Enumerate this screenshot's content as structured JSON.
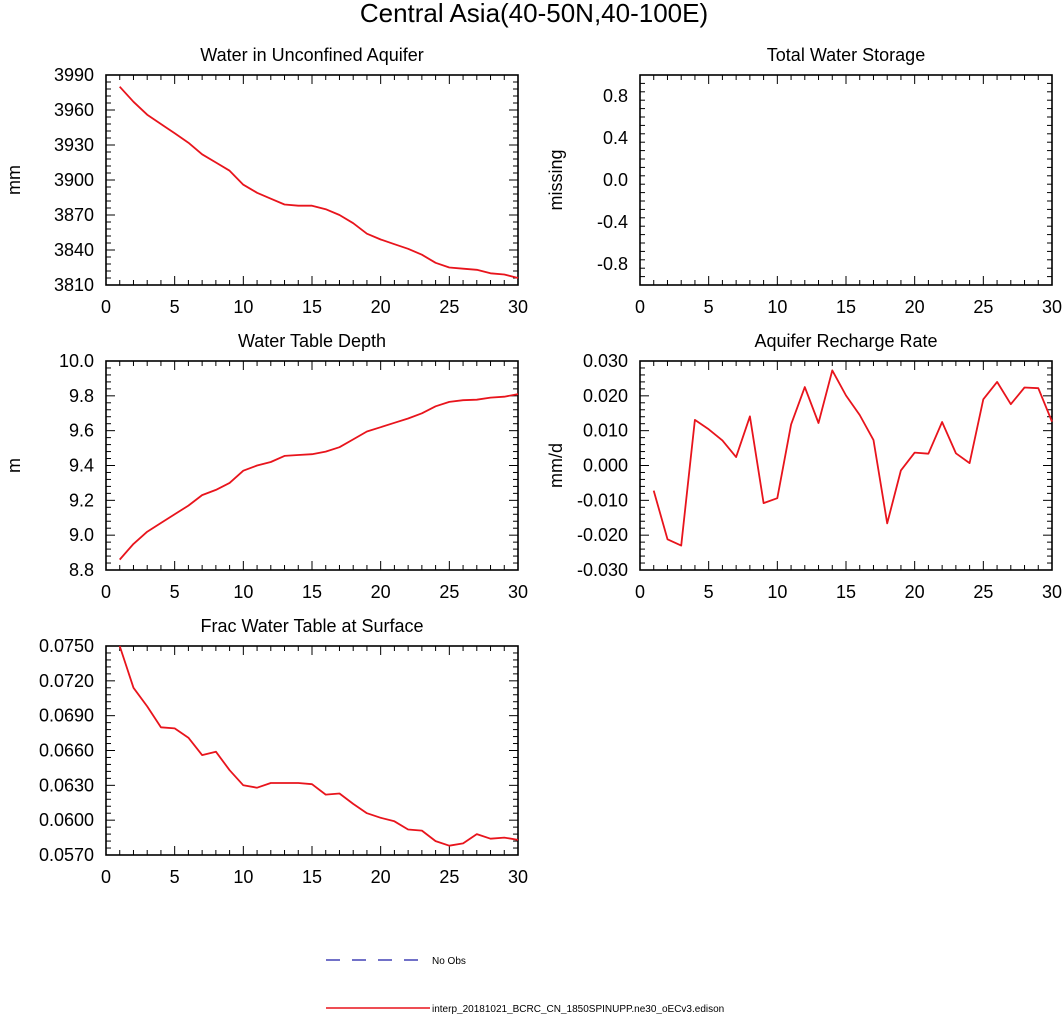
{
  "figure_title": "Central Asia(40-50N,40-100E)",
  "legend": {
    "obs_label": "No Obs",
    "model_label": "interp_20181021_BCRC_CN_1850SPINUPP.ne30_oECv3.edison"
  },
  "colors": {
    "model": "#e8141c",
    "obs": "#1c1ca8",
    "axis": "#000000"
  },
  "chart_data": [
    {
      "type": "line",
      "title": "Water in Unconfined Aquifer",
      "xlabel": "",
      "ylabel": "mm",
      "xlim": [
        0,
        30
      ],
      "ylim": [
        3810,
        3990
      ],
      "xticks": [
        0,
        5,
        10,
        15,
        20,
        25,
        30
      ],
      "xtick_labels": [
        "0",
        "5",
        "10",
        "15",
        "20",
        "25",
        "30"
      ],
      "yticks": [
        3810,
        3840,
        3870,
        3900,
        3930,
        3960,
        3990
      ],
      "ytick_labels": [
        "3810",
        "3840",
        "3870",
        "3900",
        "3930",
        "3960",
        "3990"
      ],
      "x": [
        1,
        2,
        3,
        4,
        5,
        6,
        7,
        8,
        9,
        10,
        11,
        12,
        13,
        14,
        15,
        16,
        17,
        18,
        19,
        20,
        21,
        22,
        23,
        24,
        25,
        26,
        27,
        28,
        29,
        30
      ],
      "series": [
        {
          "name": "interp_20181021_BCRC_CN_1850SPINUPP.ne30_oECv3.edison",
          "values": [
            3980,
            3967,
            3956,
            3948,
            3940,
            3932,
            3922,
            3915,
            3908,
            3896,
            3889,
            3884,
            3879,
            3878,
            3878,
            3875,
            3870,
            3863,
            3854,
            3849,
            3845,
            3841,
            3836,
            3829,
            3825,
            3824,
            3823,
            3820,
            3819,
            3816
          ]
        }
      ]
    },
    {
      "type": "line",
      "title": "Total Water Storage",
      "xlabel": "",
      "ylabel": "missing",
      "xlim": [
        0,
        30
      ],
      "ylim": [
        -1,
        1
      ],
      "xticks": [
        0,
        5,
        10,
        15,
        20,
        25,
        30
      ],
      "xtick_labels": [
        "0",
        "5",
        "10",
        "15",
        "20",
        "25",
        "30"
      ],
      "yticks": [
        -0.8,
        -0.4,
        0,
        0.4,
        0.8
      ],
      "ytick_labels": [
        "-0.8",
        "-0.4",
        "0.0",
        "0.4",
        "0.8"
      ],
      "x": [],
      "series": []
    },
    {
      "type": "line",
      "title": "Water Table Depth",
      "xlabel": "",
      "ylabel": "m",
      "xlim": [
        0,
        30
      ],
      "ylim": [
        8.8,
        10.0
      ],
      "xticks": [
        0,
        5,
        10,
        15,
        20,
        25,
        30
      ],
      "xtick_labels": [
        "0",
        "5",
        "10",
        "15",
        "20",
        "25",
        "30"
      ],
      "yticks": [
        8.8,
        9.0,
        9.2,
        9.4,
        9.6,
        9.8,
        10.0
      ],
      "ytick_labels": [
        "8.8",
        "9.0",
        "9.2",
        "9.4",
        "9.6",
        "9.8",
        "10.0"
      ],
      "x": [
        1,
        2,
        3,
        4,
        5,
        6,
        7,
        8,
        9,
        10,
        11,
        12,
        13,
        14,
        15,
        16,
        17,
        18,
        19,
        20,
        21,
        22,
        23,
        24,
        25,
        26,
        27,
        28,
        29,
        30
      ],
      "series": [
        {
          "name": "interp_20181021_BCRC_CN_1850SPINUPP.ne30_oECv3.edison",
          "values": [
            8.86,
            8.95,
            9.02,
            9.07,
            9.12,
            9.17,
            9.23,
            9.26,
            9.3,
            9.37,
            9.4,
            9.42,
            9.455,
            9.46,
            9.465,
            9.48,
            9.505,
            9.55,
            9.595,
            9.62,
            9.645,
            9.67,
            9.7,
            9.74,
            9.765,
            9.775,
            9.778,
            9.79,
            9.795,
            9.81
          ]
        }
      ]
    },
    {
      "type": "line",
      "title": "Aquifer Recharge Rate",
      "xlabel": "",
      "ylabel": "mm/d",
      "xlim": [
        0,
        30
      ],
      "ylim": [
        -0.03,
        0.03
      ],
      "xticks": [
        0,
        5,
        10,
        15,
        20,
        25,
        30
      ],
      "xtick_labels": [
        "0",
        "5",
        "10",
        "15",
        "20",
        "25",
        "30"
      ],
      "yticks": [
        -0.03,
        -0.02,
        -0.01,
        0,
        0.01,
        0.02,
        0.03
      ],
      "ytick_labels": [
        "-0.030",
        "-0.020",
        "-0.010",
        "0.000",
        "0.010",
        "0.020",
        "0.030"
      ],
      "x": [
        1,
        2,
        3,
        4,
        5,
        6,
        7,
        8,
        9,
        10,
        11,
        12,
        13,
        14,
        15,
        16,
        17,
        18,
        19,
        20,
        21,
        22,
        23,
        24,
        25,
        26,
        27,
        28,
        29,
        30
      ],
      "series": [
        {
          "name": "interp_20181021_BCRC_CN_1850SPINUPP.ne30_oECv3.edison",
          "values": [
            -0.0072,
            -0.0212,
            -0.023,
            0.0131,
            0.0104,
            0.0072,
            0.0024,
            0.0141,
            -0.0108,
            -0.0094,
            0.0118,
            0.0225,
            0.0122,
            0.0273,
            0.0201,
            0.0145,
            0.0073,
            -0.0166,
            -0.0014,
            0.0037,
            0.0034,
            0.0125,
            0.0035,
            0.0007,
            0.019,
            0.024,
            0.0176,
            0.0224,
            0.0222,
            0.0126
          ]
        }
      ]
    },
    {
      "type": "line",
      "title": "Frac Water Table at Surface",
      "xlabel": "",
      "ylabel": "",
      "xlim": [
        0,
        30
      ],
      "ylim": [
        0.057,
        0.075
      ],
      "xticks": [
        0,
        5,
        10,
        15,
        20,
        25,
        30
      ],
      "xtick_labels": [
        "0",
        "5",
        "10",
        "15",
        "20",
        "25",
        "30"
      ],
      "yticks": [
        0.057,
        0.06,
        0.063,
        0.066,
        0.069,
        0.072,
        0.075
      ],
      "ytick_labels": [
        "0.0570",
        "0.0600",
        "0.0630",
        "0.0660",
        "0.0690",
        "0.0720",
        "0.0750"
      ],
      "x": [
        1,
        2,
        3,
        4,
        5,
        6,
        7,
        8,
        9,
        10,
        11,
        12,
        13,
        14,
        15,
        16,
        17,
        18,
        19,
        20,
        21,
        22,
        23,
        24,
        25,
        26,
        27,
        28,
        29,
        30
      ],
      "series": [
        {
          "name": "interp_20181021_BCRC_CN_1850SPINUPP.ne30_oECv3.edison",
          "values": [
            0.075,
            0.0714,
            0.0698,
            0.068,
            0.0679,
            0.0671,
            0.0656,
            0.0659,
            0.0643,
            0.063,
            0.0628,
            0.0632,
            0.0632,
            0.0632,
            0.0631,
            0.0622,
            0.0623,
            0.0614,
            0.0606,
            0.0602,
            0.0599,
            0.0592,
            0.0591,
            0.0582,
            0.0578,
            0.058,
            0.0588,
            0.0584,
            0.0585,
            0.0583
          ]
        }
      ]
    }
  ]
}
